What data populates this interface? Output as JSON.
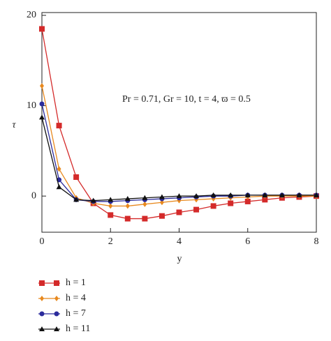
{
  "chart_data": {
    "type": "line",
    "annotation": "Pr = 0.71, Gr = 10, t = 4, ϖ = 0.5",
    "x_label": "y",
    "y_label": "τ",
    "x": [
      0,
      0.5,
      1,
      1.5,
      2,
      2.5,
      3,
      3.5,
      4,
      4.5,
      5,
      5.5,
      6,
      6.5,
      7,
      7.5,
      8
    ],
    "series": [
      {
        "name": "h = 1",
        "color": "#d42a2a",
        "marker": "square",
        "values": [
          18.5,
          7.8,
          2.1,
          -0.8,
          -2.1,
          -2.5,
          -2.5,
          -2.2,
          -1.8,
          -1.5,
          -1.1,
          -0.8,
          -0.6,
          -0.4,
          -0.2,
          -0.1,
          0
        ]
      },
      {
        "name": "h = 4",
        "color": "#e8891e",
        "marker": "diamond",
        "values": [
          12.2,
          3.0,
          -0.2,
          -0.8,
          -1.1,
          -1.1,
          -0.9,
          -0.7,
          -0.5,
          -0.4,
          -0.3,
          -0.2,
          -0.1,
          0,
          0,
          0,
          0
        ]
      },
      {
        "name": "h = 7",
        "color": "#2b2b9c",
        "marker": "circle",
        "values": [
          10.2,
          1.8,
          -0.4,
          -0.6,
          -0.6,
          -0.5,
          -0.4,
          -0.3,
          -0.2,
          -0.1,
          0,
          0,
          0.1,
          0.1,
          0.1,
          0.1,
          0.1
        ]
      },
      {
        "name": "h = 11",
        "color": "#111111",
        "marker": "triangle",
        "values": [
          8.7,
          1.0,
          -0.4,
          -0.5,
          -0.4,
          -0.3,
          -0.2,
          -0.1,
          0,
          0,
          0.1,
          0.1,
          0.1,
          0.1,
          0.1,
          0.1,
          0.1
        ]
      }
    ],
    "xlim": [
      0,
      8
    ],
    "xticks": [
      0,
      2,
      4,
      6,
      8
    ],
    "ylim": [
      -4,
      20
    ],
    "yticks": [
      0,
      10,
      20
    ]
  }
}
